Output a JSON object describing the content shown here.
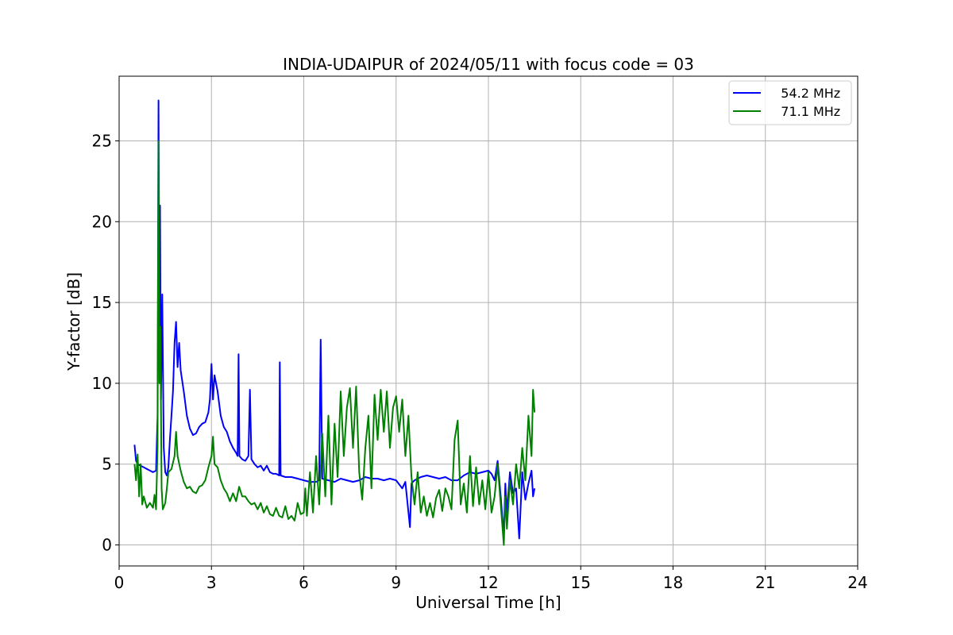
{
  "chart_data": {
    "type": "line",
    "title": "INDIA-UDAIPUR of 2024/05/11 with focus code = 03",
    "xlabel": "Universal Time [h]",
    "ylabel": "Y-factor [dB]",
    "xlim": [
      0,
      24
    ],
    "ylim": [
      -1.3,
      29
    ],
    "xticks": [
      0,
      3,
      6,
      9,
      12,
      15,
      18,
      21,
      24
    ],
    "yticks": [
      0,
      5,
      10,
      15,
      20,
      25
    ],
    "grid": true,
    "legend_position": "top-right",
    "series": [
      {
        "name": "   54.2 MHz",
        "color": "#0000ff",
        "points": [
          [
            0.5,
            6.2
          ],
          [
            0.55,
            5.2
          ],
          [
            0.6,
            5.0
          ],
          [
            0.7,
            4.9
          ],
          [
            0.8,
            4.8
          ],
          [
            0.9,
            4.7
          ],
          [
            1.0,
            4.6
          ],
          [
            1.1,
            4.5
          ],
          [
            1.2,
            4.6
          ],
          [
            1.25,
            8.0
          ],
          [
            1.28,
            27.5
          ],
          [
            1.31,
            12.0
          ],
          [
            1.33,
            21.0
          ],
          [
            1.36,
            9.0
          ],
          [
            1.4,
            15.5
          ],
          [
            1.45,
            6.0
          ],
          [
            1.5,
            4.5
          ],
          [
            1.55,
            4.3
          ],
          [
            1.6,
            4.8
          ],
          [
            1.65,
            6.5
          ],
          [
            1.7,
            8.0
          ],
          [
            1.75,
            9.5
          ],
          [
            1.8,
            12.5
          ],
          [
            1.85,
            13.8
          ],
          [
            1.9,
            11.0
          ],
          [
            1.95,
            12.5
          ],
          [
            2.0,
            10.8
          ],
          [
            2.1,
            9.5
          ],
          [
            2.2,
            8.0
          ],
          [
            2.3,
            7.2
          ],
          [
            2.4,
            6.8
          ],
          [
            2.5,
            6.9
          ],
          [
            2.6,
            7.3
          ],
          [
            2.7,
            7.5
          ],
          [
            2.8,
            7.6
          ],
          [
            2.9,
            8.2
          ],
          [
            2.95,
            9.0
          ],
          [
            3.0,
            11.2
          ],
          [
            3.05,
            9.0
          ],
          [
            3.1,
            10.5
          ],
          [
            3.2,
            9.5
          ],
          [
            3.3,
            8.0
          ],
          [
            3.4,
            7.3
          ],
          [
            3.5,
            7.0
          ],
          [
            3.6,
            6.4
          ],
          [
            3.7,
            6.0
          ],
          [
            3.8,
            5.7
          ],
          [
            3.85,
            5.5
          ],
          [
            3.88,
            11.8
          ],
          [
            3.91,
            5.5
          ],
          [
            4.0,
            5.3
          ],
          [
            4.1,
            5.2
          ],
          [
            4.2,
            5.5
          ],
          [
            4.25,
            9.6
          ],
          [
            4.3,
            5.3
          ],
          [
            4.4,
            5.0
          ],
          [
            4.5,
            4.8
          ],
          [
            4.6,
            4.9
          ],
          [
            4.7,
            4.6
          ],
          [
            4.8,
            4.9
          ],
          [
            4.9,
            4.5
          ],
          [
            5.0,
            4.4
          ],
          [
            5.1,
            4.4
          ],
          [
            5.2,
            4.3
          ],
          [
            5.22,
            11.3
          ],
          [
            5.25,
            4.3
          ],
          [
            5.4,
            4.2
          ],
          [
            5.6,
            4.2
          ],
          [
            5.8,
            4.1
          ],
          [
            6.0,
            4.0
          ],
          [
            6.2,
            3.9
          ],
          [
            6.4,
            3.9
          ],
          [
            6.5,
            4.0
          ],
          [
            6.55,
            12.7
          ],
          [
            6.6,
            4.1
          ],
          [
            6.8,
            4.0
          ],
          [
            7.0,
            3.9
          ],
          [
            7.2,
            4.1
          ],
          [
            7.4,
            4.0
          ],
          [
            7.6,
            3.9
          ],
          [
            7.8,
            4.0
          ],
          [
            8.0,
            4.2
          ],
          [
            8.2,
            4.1
          ],
          [
            8.4,
            4.1
          ],
          [
            8.6,
            4.0
          ],
          [
            8.8,
            4.1
          ],
          [
            9.0,
            4.0
          ],
          [
            9.2,
            3.5
          ],
          [
            9.3,
            3.9
          ],
          [
            9.45,
            1.1
          ],
          [
            9.5,
            3.8
          ],
          [
            9.6,
            4.0
          ],
          [
            9.8,
            4.2
          ],
          [
            10.0,
            4.3
          ],
          [
            10.2,
            4.2
          ],
          [
            10.4,
            4.1
          ],
          [
            10.6,
            4.2
          ],
          [
            10.8,
            4.0
          ],
          [
            11.0,
            4.0
          ],
          [
            11.2,
            4.3
          ],
          [
            11.4,
            4.5
          ],
          [
            11.6,
            4.4
          ],
          [
            11.8,
            4.5
          ],
          [
            12.0,
            4.6
          ],
          [
            12.1,
            4.4
          ],
          [
            12.2,
            4.0
          ],
          [
            12.3,
            5.2
          ],
          [
            12.4,
            3.0
          ],
          [
            12.5,
            0.5
          ],
          [
            12.55,
            3.8
          ],
          [
            12.6,
            2.0
          ],
          [
            12.7,
            4.5
          ],
          [
            12.8,
            3.2
          ],
          [
            12.9,
            3.5
          ],
          [
            13.0,
            0.4
          ],
          [
            13.1,
            4.5
          ],
          [
            13.2,
            2.8
          ],
          [
            13.3,
            3.8
          ],
          [
            13.4,
            4.6
          ],
          [
            13.45,
            3.0
          ],
          [
            13.5,
            3.5
          ]
        ]
      },
      {
        "name": "   71.1 MHz",
        "color": "#008000",
        "points": [
          [
            0.5,
            5.0
          ],
          [
            0.55,
            4.0
          ],
          [
            0.6,
            5.6
          ],
          [
            0.65,
            3.0
          ],
          [
            0.7,
            5.0
          ],
          [
            0.75,
            2.5
          ],
          [
            0.8,
            3.0
          ],
          [
            0.9,
            2.3
          ],
          [
            1.0,
            2.6
          ],
          [
            1.1,
            2.3
          ],
          [
            1.15,
            3.1
          ],
          [
            1.2,
            2.2
          ],
          [
            1.25,
            6.0
          ],
          [
            1.28,
            25.0
          ],
          [
            1.31,
            10.0
          ],
          [
            1.34,
            13.5
          ],
          [
            1.38,
            3.5
          ],
          [
            1.42,
            2.2
          ],
          [
            1.5,
            2.6
          ],
          [
            1.55,
            3.5
          ],
          [
            1.6,
            4.5
          ],
          [
            1.7,
            4.7
          ],
          [
            1.8,
            5.5
          ],
          [
            1.85,
            7.0
          ],
          [
            1.9,
            5.5
          ],
          [
            2.0,
            4.6
          ],
          [
            2.1,
            3.9
          ],
          [
            2.2,
            3.5
          ],
          [
            2.3,
            3.6
          ],
          [
            2.4,
            3.3
          ],
          [
            2.5,
            3.2
          ],
          [
            2.6,
            3.6
          ],
          [
            2.7,
            3.7
          ],
          [
            2.8,
            4.0
          ],
          [
            2.9,
            4.8
          ],
          [
            3.0,
            5.5
          ],
          [
            3.05,
            6.7
          ],
          [
            3.1,
            5.0
          ],
          [
            3.2,
            4.8
          ],
          [
            3.3,
            4.0
          ],
          [
            3.4,
            3.5
          ],
          [
            3.5,
            3.2
          ],
          [
            3.6,
            2.7
          ],
          [
            3.7,
            3.2
          ],
          [
            3.8,
            2.7
          ],
          [
            3.9,
            3.6
          ],
          [
            4.0,
            3.0
          ],
          [
            4.1,
            3.0
          ],
          [
            4.2,
            2.7
          ],
          [
            4.3,
            2.5
          ],
          [
            4.4,
            2.6
          ],
          [
            4.5,
            2.2
          ],
          [
            4.6,
            2.6
          ],
          [
            4.7,
            2.0
          ],
          [
            4.8,
            2.4
          ],
          [
            4.9,
            1.9
          ],
          [
            5.0,
            1.8
          ],
          [
            5.1,
            2.3
          ],
          [
            5.2,
            1.8
          ],
          [
            5.3,
            1.7
          ],
          [
            5.4,
            2.4
          ],
          [
            5.5,
            1.6
          ],
          [
            5.6,
            1.8
          ],
          [
            5.7,
            1.5
          ],
          [
            5.8,
            2.6
          ],
          [
            5.9,
            1.9
          ],
          [
            6.0,
            2.0
          ],
          [
            6.05,
            3.5
          ],
          [
            6.1,
            1.8
          ],
          [
            6.2,
            4.5
          ],
          [
            6.3,
            2.0
          ],
          [
            6.4,
            5.5
          ],
          [
            6.5,
            2.5
          ],
          [
            6.6,
            6.9
          ],
          [
            6.7,
            3.0
          ],
          [
            6.8,
            8.0
          ],
          [
            6.9,
            2.5
          ],
          [
            7.0,
            7.5
          ],
          [
            7.1,
            4.2
          ],
          [
            7.2,
            9.5
          ],
          [
            7.3,
            5.5
          ],
          [
            7.4,
            8.5
          ],
          [
            7.5,
            9.7
          ],
          [
            7.6,
            6.0
          ],
          [
            7.7,
            9.8
          ],
          [
            7.8,
            4.5
          ],
          [
            7.9,
            2.8
          ],
          [
            8.0,
            6.0
          ],
          [
            8.1,
            8.0
          ],
          [
            8.2,
            3.5
          ],
          [
            8.3,
            9.3
          ],
          [
            8.4,
            6.5
          ],
          [
            8.5,
            9.6
          ],
          [
            8.6,
            7.0
          ],
          [
            8.7,
            9.5
          ],
          [
            8.8,
            6.0
          ],
          [
            8.9,
            8.5
          ],
          [
            9.0,
            9.2
          ],
          [
            9.1,
            7.0
          ],
          [
            9.2,
            9.0
          ],
          [
            9.3,
            5.5
          ],
          [
            9.4,
            8.0
          ],
          [
            9.5,
            4.2
          ],
          [
            9.6,
            2.5
          ],
          [
            9.7,
            4.5
          ],
          [
            9.8,
            2.0
          ],
          [
            9.9,
            3.0
          ],
          [
            10.0,
            1.8
          ],
          [
            10.1,
            2.6
          ],
          [
            10.2,
            1.7
          ],
          [
            10.3,
            2.9
          ],
          [
            10.4,
            3.4
          ],
          [
            10.5,
            2.1
          ],
          [
            10.6,
            3.5
          ],
          [
            10.7,
            3.0
          ],
          [
            10.8,
            2.2
          ],
          [
            10.9,
            6.5
          ],
          [
            11.0,
            7.7
          ],
          [
            11.1,
            2.5
          ],
          [
            11.2,
            3.8
          ],
          [
            11.3,
            2.0
          ],
          [
            11.4,
            5.5
          ],
          [
            11.5,
            2.4
          ],
          [
            11.6,
            4.8
          ],
          [
            11.7,
            2.5
          ],
          [
            11.8,
            4.0
          ],
          [
            11.9,
            2.2
          ],
          [
            12.0,
            4.5
          ],
          [
            12.1,
            2.0
          ],
          [
            12.2,
            3.0
          ],
          [
            12.3,
            5.0
          ],
          [
            12.4,
            2.5
          ],
          [
            12.5,
            0.0
          ],
          [
            12.55,
            3.0
          ],
          [
            12.6,
            1.0
          ],
          [
            12.7,
            4.0
          ],
          [
            12.8,
            2.5
          ],
          [
            12.9,
            5.0
          ],
          [
            13.0,
            3.5
          ],
          [
            13.1,
            6.0
          ],
          [
            13.2,
            4.0
          ],
          [
            13.3,
            8.0
          ],
          [
            13.4,
            5.5
          ],
          [
            13.45,
            9.6
          ],
          [
            13.5,
            8.2
          ]
        ]
      }
    ]
  }
}
